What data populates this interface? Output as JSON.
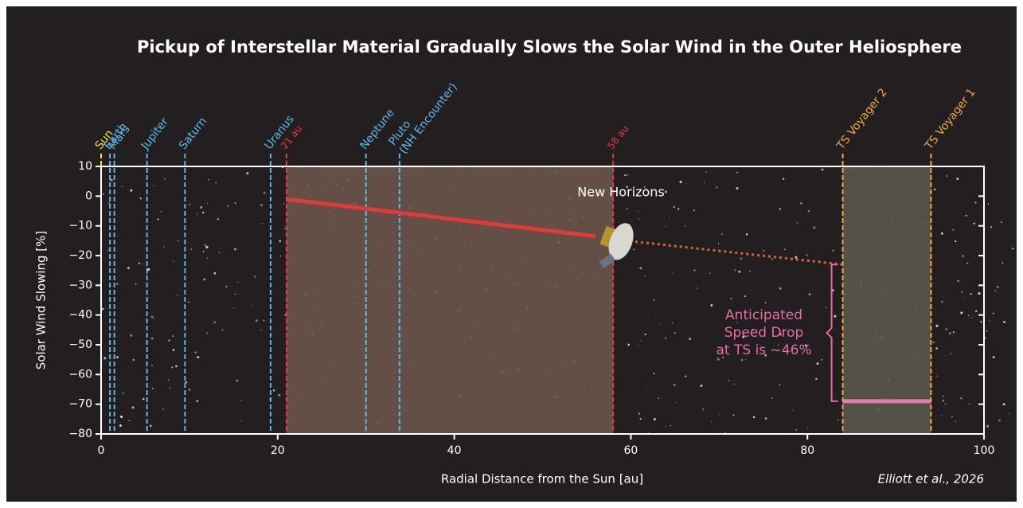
{
  "chart_data": {
    "type": "line",
    "title": "Pickup of Interstellar Material Gradually Slows the Solar Wind in the Outer Heliosphere",
    "x_label": "Radial Distance from the Sun [au]",
    "y_label": "Solar Wind Slowing [%]",
    "credit": "Elliott et al., 2026",
    "xlim": [
      0,
      100
    ],
    "ylim": [
      -80,
      10
    ],
    "xticks": [
      0,
      20,
      40,
      60,
      80,
      100
    ],
    "yticks": [
      10,
      0,
      {
        "value": -10,
        "label": "−10"
      },
      {
        "value": -20,
        "label": "−20"
      },
      {
        "value": -30,
        "label": "−30"
      },
      {
        "value": -40,
        "label": "−40"
      },
      {
        "value": -50,
        "label": "−50"
      },
      {
        "value": -60,
        "label": "−60"
      },
      {
        "value": -70,
        "label": "−70"
      },
      {
        "value": -80,
        "label": "−80"
      }
    ],
    "regions": [
      {
        "x": [
          21,
          58
        ],
        "color": "#6b544b"
      },
      {
        "x": [
          84,
          94
        ],
        "color": "#5a584c"
      }
    ],
    "markers": [
      {
        "label": "Sun",
        "x": 0,
        "color": "#f3e53c"
      },
      {
        "label": "Earth",
        "x": 1,
        "color": "#5cb8ea"
      },
      {
        "label": "Mars",
        "x": 1.5,
        "color": "#5cb8ea"
      },
      {
        "label": "Jupiter",
        "x": 5.2,
        "color": "#5cb8ea"
      },
      {
        "label": "Saturn",
        "x": 9.5,
        "color": "#5cb8ea"
      },
      {
        "label": "Uranus",
        "x": 19.2,
        "color": "#5cb8ea"
      },
      {
        "label": "21 au",
        "x": 21,
        "color": "#e8383a"
      },
      {
        "label": "Neptune",
        "x": 30,
        "color": "#5cb8ea"
      },
      {
        "label": [
          "Pluto",
          "(NH Encounter)"
        ],
        "x": 33.8,
        "color": "#5cb8ea"
      },
      {
        "label": "58 au",
        "x": 58,
        "color": "#e8383a"
      },
      {
        "label": "TS Voyager 2",
        "x": 84,
        "color": "#f0a845"
      },
      {
        "label": "TS Voyager 1",
        "x": 94,
        "color": "#f0a845"
      }
    ],
    "series": [
      {
        "color": "#e03a3a",
        "style": "solid",
        "x": [
          21,
          56
        ],
        "values": [
          -1,
          -13.5
        ]
      },
      {
        "color": "#d9643c",
        "style": "dotted",
        "x": [
          58,
          84
        ],
        "values": [
          -14.5,
          -23
        ]
      },
      {
        "color": "#e77ab2",
        "style": "solid",
        "x": [
          84,
          94
        ],
        "values": [
          -69,
          -69
        ]
      }
    ],
    "spacecraft_label": "New Horizons",
    "annotation": {
      "text": [
        "Anticipated",
        "Speed Drop",
        "at TS is ~46%"
      ],
      "span": [
        -23,
        -69
      ],
      "color": "#e86aa8"
    }
  }
}
